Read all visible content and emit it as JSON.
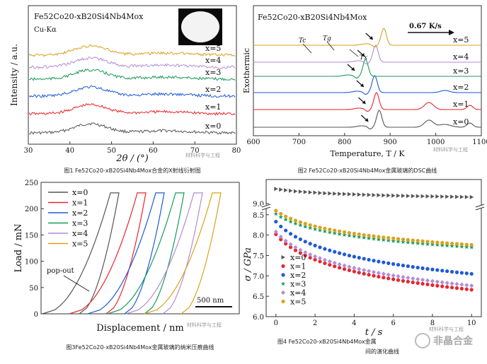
{
  "chart_data": [
    {
      "type": "line",
      "panel": "xrd",
      "title": "Fe52Co20-xB20Si4Nb4Mox",
      "subtitle": "Cu-Kα",
      "xlabel": "2θ / (°)",
      "ylabel": "Intensity / a.u.",
      "xlim": [
        30,
        80
      ],
      "xticks": [
        30,
        40,
        50,
        60,
        70,
        80
      ],
      "series": [
        {
          "name": "x=0",
          "color": "#555555"
        },
        {
          "name": "x=1",
          "color": "#e8262b"
        },
        {
          "name": "x=2",
          "color": "#1e5ad6"
        },
        {
          "name": "x=3",
          "color": "#1a9a5a"
        },
        {
          "name": "x=4",
          "color": "#b48bd6"
        },
        {
          "name": "x=5",
          "color": "#d9a21e"
        }
      ],
      "peak_center": 45,
      "caption": "图1 Fe52Co20-xB20Si4Nb4Mox合金的X射线衍射图"
    },
    {
      "type": "line",
      "panel": "dsc",
      "title": "Fe52Co20-xB20Si4Nb4Mox",
      "rate_label": "0.67 K/s",
      "xlabel": "Temperature, T / K",
      "ylabel": "Exothermic",
      "xlim": [
        600,
        1100
      ],
      "xticks": [
        600,
        700,
        800,
        900,
        1000,
        1100
      ],
      "annotations": [
        "Tc",
        "Tg",
        "Tx"
      ],
      "series": [
        {
          "name": "x=0",
          "color": "#555555",
          "tx": 868
        },
        {
          "name": "x=1",
          "color": "#e8262b",
          "tx": 862
        },
        {
          "name": "x=2",
          "color": "#1e5ad6",
          "tx": 858
        },
        {
          "name": "x=3",
          "color": "#1a9a5a",
          "tx": 838
        },
        {
          "name": "x=4",
          "color": "#b48bd6",
          "tx": 860
        },
        {
          "name": "x=5",
          "color": "#d9a21e",
          "tx": 878
        }
      ],
      "caption": "图2 Fe52Co20-xB20Si4Nb4Mox金属玻璃的DSC曲线"
    },
    {
      "type": "line",
      "panel": "nanoindentation",
      "xlabel": "Displacement / nm",
      "ylabel": "Load / mN",
      "ylim": [
        0,
        250
      ],
      "yticks": [
        0,
        50,
        100,
        150,
        200,
        250
      ],
      "annotation": "pop-out",
      "scalebar": "500 nm",
      "series": [
        {
          "name": "x=0",
          "color": "#555555"
        },
        {
          "name": "x=1",
          "color": "#e8262b"
        },
        {
          "name": "x=2",
          "color": "#1e5ad6"
        },
        {
          "name": "x=3",
          "color": "#1a9a5a"
        },
        {
          "name": "x=4",
          "color": "#b48bd6"
        },
        {
          "name": "x=5",
          "color": "#d9a21e"
        }
      ],
      "caption": "图3Fe52Co20-xB20Si4Nb4Mox金属玻璃的纳米压痕曲线"
    },
    {
      "type": "scatter",
      "panel": "stress",
      "xlabel": "t / s",
      "ylabel": "σ / GPa",
      "xlim": [
        -0.5,
        10.5
      ],
      "xticks": [
        0,
        2,
        4,
        6,
        8,
        10
      ],
      "yticks_lower": [
        6.0,
        6.5,
        7.0,
        7.5,
        8.0,
        8.5
      ],
      "ytick_upper": 9.0,
      "series": [
        {
          "name": "x=0",
          "color": "#555555",
          "marker": "triangle-right",
          "start": 9.32,
          "end": 9.14
        },
        {
          "name": "x=1",
          "color": "#e8262b",
          "marker": "circle",
          "start": 8.02,
          "end": 6.66
        },
        {
          "name": "x=2",
          "color": "#1e5ad6",
          "marker": "circle",
          "start": 8.33,
          "end": 7.05
        },
        {
          "name": "x=3",
          "color": "#1a9a5a",
          "marker": "star",
          "start": 8.52,
          "end": 7.7
        },
        {
          "name": "x=4",
          "color": "#b48bd6",
          "marker": "diamond",
          "start": 8.08,
          "end": 6.76
        },
        {
          "name": "x=5",
          "color": "#d9a21e",
          "marker": "circle",
          "start": 8.6,
          "end": 7.76
        }
      ],
      "caption_line1": "图4 Fe52Co20-xB20Si4Nb4Mox金属",
      "caption_line2": "间的演化曲线"
    }
  ],
  "watermarks": {
    "small": "材料科学与工程",
    "logo": "非晶合金"
  }
}
